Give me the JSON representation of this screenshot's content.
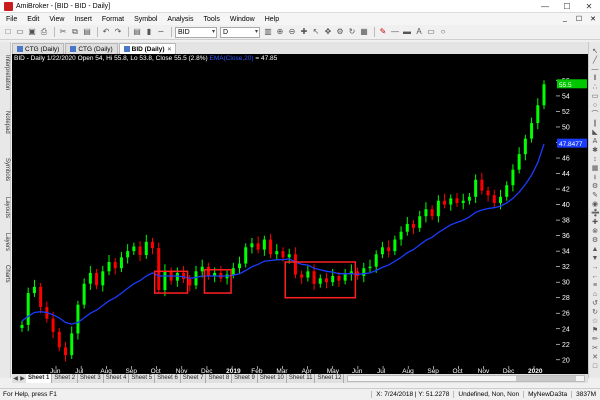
{
  "window": {
    "title": "AmiBroker - [BID - BID - Daily]",
    "minimize": "—",
    "maximize": "☐",
    "close": "✕"
  },
  "menu": {
    "items": [
      "File",
      "Edit",
      "View",
      "Insert",
      "Format",
      "Symbol",
      "Analysis",
      "Tools",
      "Window",
      "Help"
    ],
    "mdi": [
      "_",
      "☐",
      "✕"
    ]
  },
  "toolbar": {
    "symbol_value": "BID",
    "interval_value": "D"
  },
  "sidebar": {
    "tabs": [
      "Interpretation",
      "Notepad",
      "Symbols",
      "Layouts",
      "Layers",
      "Charts"
    ]
  },
  "doc_tabs": [
    {
      "label": "CTG (Daily)",
      "active": false
    },
    {
      "label": "CTG (Daily)",
      "active": false
    },
    {
      "label": "BID (Daily)",
      "active": true
    }
  ],
  "chart_info": {
    "text": "BID - Daily 1/22/2020 Open 54, Hi 55.8, Lo 53.8, Close 55.5 (2.8%)",
    "ema_label": "EMA(Close,20)",
    "ema_value": "= 47.85"
  },
  "chart_data": {
    "type": "candlestick",
    "colors": {
      "up": "#00ff00",
      "down": "#ff0000",
      "ema": "#1a3cff",
      "background": "#000000",
      "price_badge": "#00c800",
      "ema_badge": "#1a3cff",
      "highlight": "#ff2020"
    },
    "ylim": [
      19.2,
      57.6
    ],
    "y_ticks": [
      20,
      22,
      24,
      26,
      28,
      30,
      32,
      34,
      36,
      38,
      40,
      42,
      44,
      46,
      48,
      50,
      52,
      54,
      56
    ],
    "x_labels": [
      "Jun",
      "Jul",
      "Aug",
      "Sep",
      "Oct",
      "Nov",
      "Dec",
      "2019",
      "Feb",
      "Mar",
      "Apr",
      "May",
      "Jun",
      "Jul",
      "Aug",
      "Sep",
      "Oct",
      "Nov",
      "Dec",
      "2020"
    ],
    "price_badges": {
      "close": "55.5",
      "close_upper": "55.5",
      "ema": "47.8477"
    },
    "series": [
      {
        "name": "Close",
        "values": [
          24.5,
          28.6,
          29.4,
          26.8,
          25.3,
          23.6,
          21.6,
          20.6,
          23.4,
          27.1,
          29.8,
          31.2,
          29.6,
          31.4,
          32.6,
          31.8,
          33.2,
          34.0,
          34.6,
          33.5,
          35.2,
          34.4,
          29.0,
          31.4,
          30.2,
          31.2,
          30.4,
          29.6,
          31.4,
          32.0,
          30.8,
          31.2,
          30.5,
          31.0,
          31.8,
          32.4,
          34.5,
          35.0,
          34.2,
          35.5,
          33.6,
          34.0,
          33.2,
          33.6,
          31.0,
          30.6,
          31.4,
          29.8,
          30.5,
          30.0,
          30.8,
          30.2,
          31.0,
          31.4,
          30.8,
          31.8,
          32.0,
          33.6,
          34.5,
          34.0,
          35.5,
          36.5,
          37.5,
          37.0,
          38.5,
          39.4,
          38.5,
          40.5,
          40.0,
          40.8,
          40.2,
          40.5,
          41.0,
          43.2,
          41.8,
          41.2,
          40.2,
          41.0,
          42.5,
          44.5,
          46.5,
          48.5,
          50.5,
          52.8,
          55.5
        ]
      },
      {
        "name": "EMA(Close,20)",
        "values": [
          25.0,
          25.6,
          26.1,
          26.2,
          26.1,
          25.8,
          25.4,
          24.8,
          24.6,
          24.8,
          25.4,
          26.0,
          26.4,
          27.0,
          27.6,
          28.0,
          28.6,
          29.2,
          29.8,
          30.2,
          30.8,
          31.2,
          30.8,
          30.8,
          30.8,
          30.8,
          30.7,
          30.5,
          30.6,
          30.8,
          30.8,
          30.8,
          30.8,
          30.8,
          30.9,
          31.1,
          31.5,
          32.0,
          32.3,
          32.7,
          32.8,
          32.9,
          32.9,
          33.0,
          32.6,
          32.3,
          32.2,
          31.8,
          31.6,
          31.4,
          31.3,
          31.1,
          31.1,
          31.1,
          31.0,
          31.1,
          31.2,
          31.5,
          31.9,
          32.2,
          32.7,
          33.2,
          33.8,
          34.2,
          34.8,
          35.4,
          35.8,
          36.4,
          36.9,
          37.4,
          37.7,
          38.0,
          38.4,
          39.0,
          39.3,
          39.5,
          39.6,
          39.8,
          40.2,
          40.8,
          41.6,
          42.6,
          43.8,
          45.4,
          47.8
        ]
      }
    ]
  },
  "right_tools": [
    "↖",
    "╱",
    "―",
    "‖",
    "∴",
    "▭",
    "○",
    "⌒",
    "∥",
    "◣",
    "A",
    "✱",
    "↕",
    "▦",
    "⭳",
    "⚙",
    "✎",
    "◉",
    "➗",
    "✚",
    "⊗",
    "⚙",
    "▲",
    "▼",
    "→",
    "←",
    "≡",
    "⌂",
    "↺",
    "↻",
    "☆",
    "⚑",
    "✏",
    "✂",
    "✕",
    "□"
  ],
  "sheets": [
    "Sheet 1",
    "Sheet 2",
    "Sheet 3",
    "Sheet 4",
    "Sheet 5",
    "Sheet 6",
    "Sheet 7",
    "Sheet 8",
    "Sheet 9",
    "Sheet 10",
    "Sheet 11",
    "Sheet 12"
  ],
  "status": {
    "help": "For Help, press F1",
    "coords": "X: 7/24/2018 | Y: 51.2278",
    "state": "Undefined, Non, Non",
    "db": "MyNewDa3ta",
    "mem": "3837M"
  }
}
